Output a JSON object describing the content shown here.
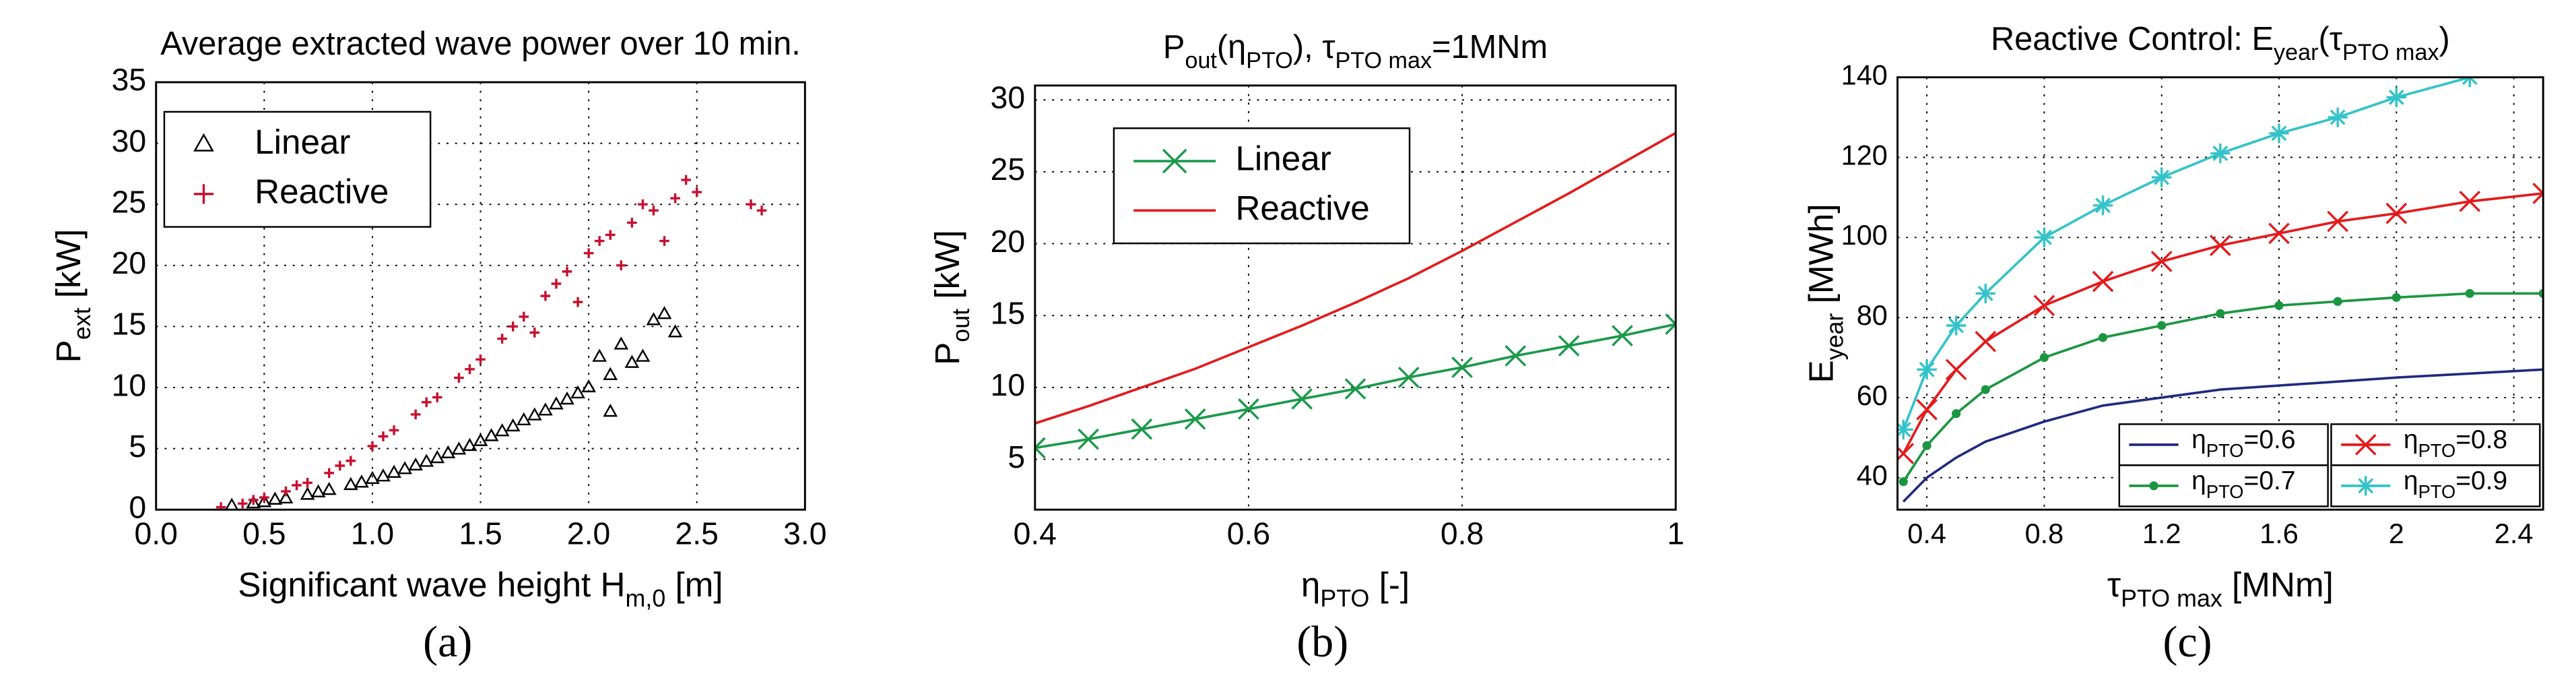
{
  "chart_data": [
    {
      "type": "scatter",
      "title": "Average extracted wave power over 10 min.",
      "x_label": [
        "Significant wave height H",
        "m,0",
        " [m]"
      ],
      "y_label": [
        "P",
        "ext",
        " [kW]"
      ],
      "caption": "(a)",
      "xlim": [
        0,
        3
      ],
      "ylim": [
        0,
        35
      ],
      "xticks": [
        {
          "value": 0,
          "label": "0.0"
        },
        {
          "value": 0.5,
          "label": "0.5"
        },
        {
          "value": 1,
          "label": "1.0"
        },
        {
          "value": 1.5,
          "label": "1.5"
        },
        {
          "value": 2,
          "label": "2.0"
        },
        {
          "value": 2.5,
          "label": "2.5"
        },
        {
          "value": 3,
          "label": "3.0"
        }
      ],
      "yticks": [
        0,
        5,
        10,
        15,
        20,
        25,
        30,
        35
      ],
      "grid": true,
      "legend": "upper left",
      "series": [
        {
          "name": "Linear",
          "color": "#000000",
          "marker": "triangle",
          "x": [
            0.35,
            0.45,
            0.5,
            0.55,
            0.6,
            0.7,
            0.75,
            0.8,
            0.9,
            0.95,
            1.0,
            1.05,
            1.1,
            1.15,
            1.2,
            1.25,
            1.3,
            1.35,
            1.4,
            1.45,
            1.5,
            1.55,
            1.6,
            1.65,
            1.7,
            1.75,
            1.8,
            1.85,
            1.9,
            1.95,
            2.0,
            2.05,
            2.1,
            2.15,
            2.2,
            2.25,
            2.3,
            2.35,
            2.4,
            2.1
          ],
          "values": [
            0.3,
            0.5,
            0.6,
            0.8,
            0.9,
            1.2,
            1.4,
            1.6,
            2.0,
            2.2,
            2.5,
            2.7,
            3.0,
            3.3,
            3.6,
            3.9,
            4.2,
            4.6,
            4.9,
            5.2,
            5.6,
            6.0,
            6.4,
            6.8,
            7.3,
            7.7,
            8.1,
            8.6,
            9.0,
            9.5,
            10.0,
            12.5,
            11.0,
            13.5,
            12.0,
            12.5,
            15.5,
            16.0,
            14.5,
            8.0
          ]
        },
        {
          "name": "Reactive",
          "color": "#c8102e",
          "marker": "plus",
          "x": [
            0.3,
            0.4,
            0.5,
            0.6,
            0.7,
            0.8,
            0.9,
            1.0,
            1.1,
            1.2,
            1.3,
            1.4,
            1.5,
            1.6,
            1.7,
            1.8,
            1.9,
            2.0,
            2.1,
            2.2,
            2.3,
            2.4,
            2.5,
            0.45,
            0.65,
            0.85,
            1.05,
            1.25,
            1.45,
            1.65,
            1.85,
            2.05,
            2.25,
            2.45,
            1.75,
            1.95,
            2.15,
            2.35,
            2.8,
            2.75
          ],
          "values": [
            0.2,
            0.5,
            1.0,
            1.5,
            2.2,
            3.0,
            4.0,
            5.2,
            6.5,
            7.8,
            9.2,
            10.8,
            12.3,
            14.0,
            15.8,
            17.5,
            19.5,
            21.0,
            22.5,
            23.5,
            24.5,
            25.5,
            26.0,
            0.8,
            2.0,
            3.6,
            6.0,
            8.8,
            11.5,
            15.0,
            18.5,
            22.0,
            25.0,
            27.0,
            14.5,
            17.0,
            20.0,
            22.0,
            24.5,
            25.0
          ]
        }
      ]
    },
    {
      "type": "line",
      "title": [
        "P",
        "out",
        "(η",
        "PTO",
        "), τ",
        "PTO max",
        "=1MNm"
      ],
      "x_label": [
        "η",
        "PTO",
        " [-]"
      ],
      "y_label": [
        "P",
        "out",
        " [kW]"
      ],
      "caption": "(b)",
      "xlim": [
        0.4,
        1
      ],
      "ylim": [
        1.5,
        31
      ],
      "xticks": [
        0.4,
        0.6,
        0.8,
        1
      ],
      "yticks": [
        5,
        10,
        15,
        20,
        25,
        30
      ],
      "grid": true,
      "legend": "upper left",
      "x": [
        0.4,
        0.45,
        0.5,
        0.55,
        0.6,
        0.65,
        0.7,
        0.75,
        0.8,
        0.85,
        0.9,
        0.95,
        1.0
      ],
      "series": [
        {
          "name": "Linear",
          "color": "#1a9a4a",
          "marker": "x",
          "values": [
            5.8,
            6.4,
            7.1,
            7.8,
            8.5,
            9.2,
            9.9,
            10.7,
            11.4,
            12.2,
            12.9,
            13.6,
            14.4
          ]
        },
        {
          "name": "Reactive",
          "color": "#e41a1c",
          "marker": "none",
          "values": [
            7.5,
            8.7,
            10.0,
            11.3,
            12.8,
            14.3,
            15.9,
            17.6,
            19.5,
            21.5,
            23.5,
            25.6,
            27.7
          ]
        }
      ]
    },
    {
      "type": "line",
      "title": [
        "Reactive Control: E",
        "year",
        "(τ",
        "PTO max",
        ")"
      ],
      "x_label": [
        "τ",
        "PTO max",
        " [MNm]"
      ],
      "y_label": [
        "E",
        "year",
        " [MWh]"
      ],
      "caption": "(c)",
      "xlim": [
        0.3,
        2.5
      ],
      "ylim": [
        32,
        140
      ],
      "xticks": [
        0.4,
        0.8,
        1.2,
        1.6,
        2,
        2.4
      ],
      "yticks": [
        40,
        60,
        80,
        100,
        120,
        140
      ],
      "grid": true,
      "legend": "lower right",
      "x": [
        0.32,
        0.4,
        0.5,
        0.6,
        0.8,
        1.0,
        1.2,
        1.4,
        1.6,
        1.8,
        2.0,
        2.25,
        2.5
      ],
      "series": [
        {
          "name": [
            "η",
            "PTO",
            "=0.6"
          ],
          "color": "#1f2a80",
          "marker": "none",
          "values": [
            34,
            40,
            45,
            49,
            54,
            58,
            60,
            62,
            63,
            64,
            65,
            66,
            67
          ]
        },
        {
          "name": [
            "η",
            "PTO",
            "=0.7"
          ],
          "color": "#1a9641",
          "marker": "dot",
          "values": [
            39,
            48,
            56,
            62,
            70,
            75,
            78,
            81,
            83,
            84,
            85,
            86,
            86
          ]
        },
        {
          "name": [
            "η",
            "PTO",
            "=0.8"
          ],
          "color": "#e41a1c",
          "marker": "x",
          "values": [
            46,
            57,
            67,
            74,
            83,
            89,
            94,
            98,
            101,
            104,
            106,
            109,
            111
          ]
        },
        {
          "name": [
            "η",
            "PTO",
            "=0.9"
          ],
          "color": "#33c3c8",
          "marker": "star",
          "values": [
            52,
            67,
            78,
            86,
            100,
            108,
            115,
            121,
            126,
            130,
            135,
            140,
            null
          ]
        }
      ]
    }
  ]
}
